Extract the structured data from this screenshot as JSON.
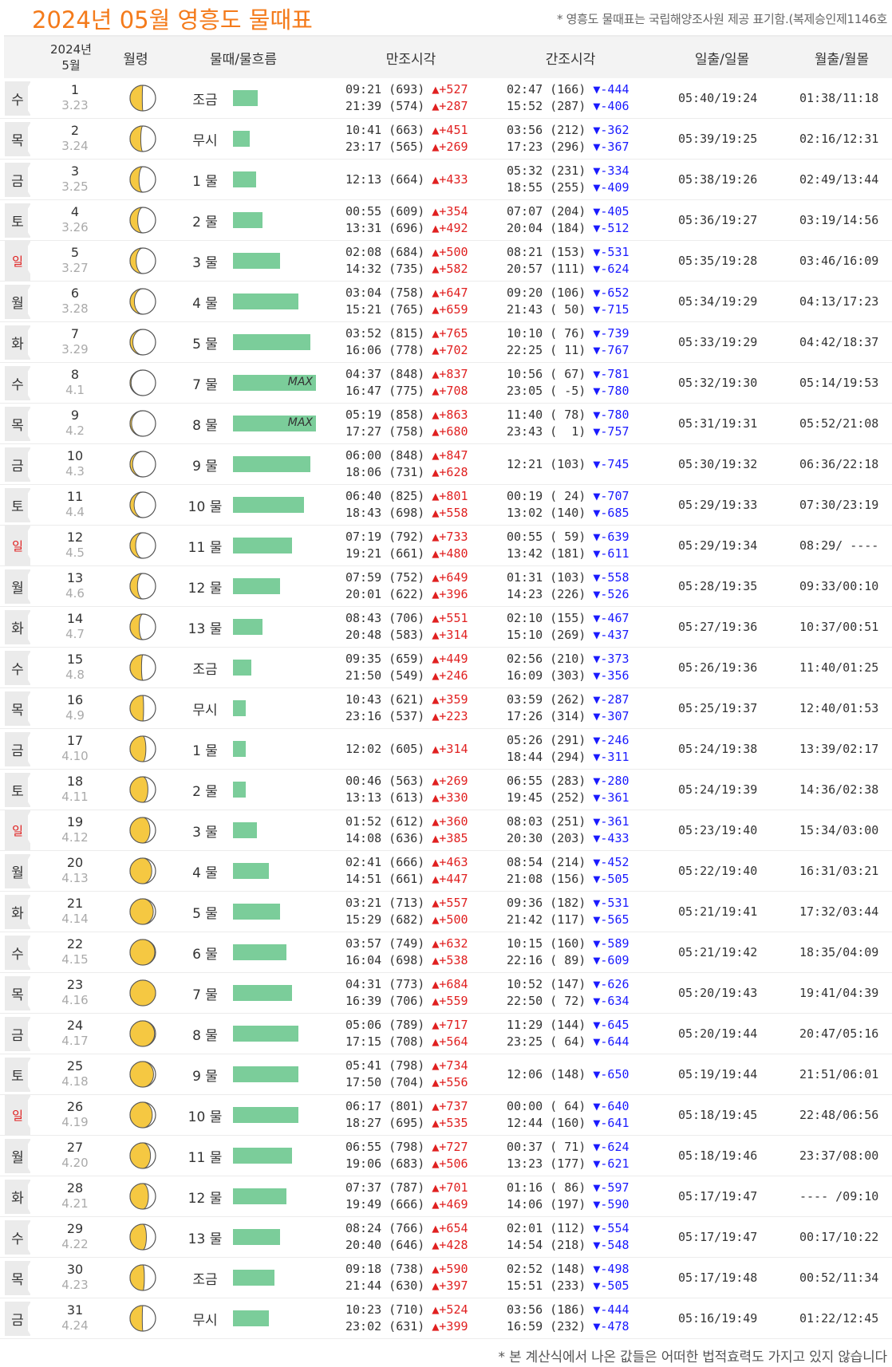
{
  "header": {
    "title": "2024년 05월 영흥도 물때표",
    "notice": "* 영흥도 물때표는 국립해양조사원 제공 표기함.(복제승인제1146호"
  },
  "columns": {
    "date_year": "2024년",
    "date_month": "5월",
    "moon_age": "월령",
    "tide_name": "물때/물흐름",
    "high": "만조시각",
    "low": "간조시각",
    "sun": "일출/일몰",
    "moon": "월출/월몰"
  },
  "colors": {
    "title": "#f47a1a",
    "bar": "#7bcd9a",
    "rise": "#e02020",
    "fall": "#1a1aff",
    "sunday": "#e02020"
  },
  "bar_max_label": "MAX",
  "rows": [
    {
      "dow": "수",
      "sun_day": false,
      "day": "1",
      "lunar": "3.23",
      "phase": 0.48,
      "tide": "조금",
      "flow": 0.3,
      "max": false,
      "high": [
        [
          "09:21 (693)",
          "▲+527"
        ],
        [
          "21:39 (574)",
          "▲+287"
        ]
      ],
      "low": [
        [
          "02:47 (166)",
          "▼-444"
        ],
        [
          "15:52 (287)",
          "▼-406"
        ]
      ],
      "sun": "05:40/19:24",
      "moon": "01:38/11:18"
    },
    {
      "dow": "목",
      "sun_day": false,
      "day": "2",
      "lunar": "3.24",
      "phase": 0.42,
      "tide": "무시",
      "flow": 0.2,
      "max": false,
      "high": [
        [
          "10:41 (663)",
          "▲+451"
        ],
        [
          "23:17 (565)",
          "▲+269"
        ]
      ],
      "low": [
        [
          "03:56 (212)",
          "▼-362"
        ],
        [
          "17:23 (296)",
          "▼-367"
        ]
      ],
      "sun": "05:39/19:25",
      "moon": "02:16/12:31"
    },
    {
      "dow": "금",
      "sun_day": false,
      "day": "3",
      "lunar": "3.25",
      "phase": 0.35,
      "tide": "1 물",
      "flow": 0.28,
      "max": false,
      "high": [
        [
          "12:13 (664)",
          "▲+433"
        ]
      ],
      "low": [
        [
          "05:32 (231)",
          "▼-334"
        ],
        [
          "18:55 (255)",
          "▼-409"
        ]
      ],
      "sun": "05:38/19:26",
      "moon": "02:49/13:44"
    },
    {
      "dow": "토",
      "sun_day": false,
      "day": "4",
      "lunar": "3.26",
      "phase": 0.3,
      "tide": "2 물",
      "flow": 0.36,
      "max": false,
      "high": [
        [
          "00:55 (609)",
          "▲+354"
        ],
        [
          "13:31 (696)",
          "▲+492"
        ]
      ],
      "low": [
        [
          "07:07 (204)",
          "▼-405"
        ],
        [
          "20:04 (184)",
          "▼-512"
        ]
      ],
      "sun": "05:36/19:27",
      "moon": "03:19/14:56"
    },
    {
      "dow": "일",
      "sun_day": true,
      "day": "5",
      "lunar": "3.27",
      "phase": 0.24,
      "tide": "3 물",
      "flow": 0.57,
      "max": false,
      "high": [
        [
          "02:08 (684)",
          "▲+500"
        ],
        [
          "14:32 (735)",
          "▲+582"
        ]
      ],
      "low": [
        [
          "08:21 (153)",
          "▼-531"
        ],
        [
          "20:57 (111)",
          "▼-624"
        ]
      ],
      "sun": "05:35/19:28",
      "moon": "03:46/16:09"
    },
    {
      "dow": "월",
      "sun_day": false,
      "day": "6",
      "lunar": "3.28",
      "phase": 0.17,
      "tide": "4 물",
      "flow": 0.79,
      "max": false,
      "high": [
        [
          "03:04 (758)",
          "▲+647"
        ],
        [
          "15:21 (765)",
          "▲+659"
        ]
      ],
      "low": [
        [
          "09:20 (106)",
          "▼-652"
        ],
        [
          "21:43 ( 50)",
          "▼-715"
        ]
      ],
      "sun": "05:34/19:29",
      "moon": "04:13/17:23"
    },
    {
      "dow": "화",
      "sun_day": false,
      "day": "7",
      "lunar": "3.29",
      "phase": 0.11,
      "tide": "5 물",
      "flow": 0.93,
      "max": false,
      "high": [
        [
          "03:52 (815)",
          "▲+765"
        ],
        [
          "16:06 (778)",
          "▲+702"
        ]
      ],
      "low": [
        [
          "10:10 ( 76)",
          "▼-739"
        ],
        [
          "22:25 ( 11)",
          "▼-767"
        ]
      ],
      "sun": "05:33/19:29",
      "moon": "04:42/18:37"
    },
    {
      "dow": "수",
      "sun_day": false,
      "day": "8",
      "lunar": "4.1",
      "phase": 0.04,
      "tide": "7 물",
      "flow": 1.0,
      "max": true,
      "high": [
        [
          "04:37 (848)",
          "▲+837"
        ],
        [
          "16:47 (775)",
          "▲+708"
        ]
      ],
      "low": [
        [
          "10:56 ( 67)",
          "▼-781"
        ],
        [
          "23:05 ( -5)",
          "▼-780"
        ]
      ],
      "sun": "05:32/19:30",
      "moon": "05:14/19:53"
    },
    {
      "dow": "목",
      "sun_day": false,
      "day": "9",
      "lunar": "4.2",
      "phase": 0.06,
      "tide": "8 물",
      "flow": 1.0,
      "max": true,
      "high": [
        [
          "05:19 (858)",
          "▲+863"
        ],
        [
          "17:27 (758)",
          "▲+680"
        ]
      ],
      "low": [
        [
          "11:40 ( 78)",
          "▼-780"
        ],
        [
          "23:43 (  1)",
          "▼-757"
        ]
      ],
      "sun": "05:31/19:31",
      "moon": "05:52/21:08"
    },
    {
      "dow": "금",
      "sun_day": false,
      "day": "10",
      "lunar": "4.3",
      "phase": 0.1,
      "tide": "9 물",
      "flow": 0.93,
      "max": false,
      "high": [
        [
          "06:00 (848)",
          "▲+847"
        ],
        [
          "18:06 (731)",
          "▲+628"
        ]
      ],
      "low": [
        [
          "12:21 (103)",
          "▼-745"
        ]
      ],
      "sun": "05:30/19:32",
      "moon": "06:36/22:18"
    },
    {
      "dow": "토",
      "sun_day": false,
      "day": "11",
      "lunar": "4.4",
      "phase": 0.16,
      "tide": "10 물",
      "flow": 0.86,
      "max": false,
      "high": [
        [
          "06:40 (825)",
          "▲+801"
        ],
        [
          "18:43 (698)",
          "▲+558"
        ]
      ],
      "low": [
        [
          "00:19 ( 24)",
          "▼-707"
        ],
        [
          "13:02 (140)",
          "▼-685"
        ]
      ],
      "sun": "05:29/19:33",
      "moon": "07:30/23:19"
    },
    {
      "dow": "일",
      "sun_day": true,
      "day": "12",
      "lunar": "4.5",
      "phase": 0.22,
      "tide": "11 물",
      "flow": 0.71,
      "max": false,
      "high": [
        [
          "07:19 (792)",
          "▲+733"
        ],
        [
          "19:21 (661)",
          "▲+480"
        ]
      ],
      "low": [
        [
          "00:55 ( 59)",
          "▼-639"
        ],
        [
          "13:42 (181)",
          "▼-611"
        ]
      ],
      "sun": "05:29/19:34",
      "moon": "08:29/ ----"
    },
    {
      "dow": "월",
      "sun_day": false,
      "day": "13",
      "lunar": "4.6",
      "phase": 0.29,
      "tide": "12 물",
      "flow": 0.57,
      "max": false,
      "high": [
        [
          "07:59 (752)",
          "▲+649"
        ],
        [
          "20:01 (622)",
          "▲+396"
        ]
      ],
      "low": [
        [
          "01:31 (103)",
          "▼-558"
        ],
        [
          "14:23 (226)",
          "▼-526"
        ]
      ],
      "sun": "05:28/19:35",
      "moon": "09:33/00:10"
    },
    {
      "dow": "화",
      "sun_day": false,
      "day": "14",
      "lunar": "4.7",
      "phase": 0.36,
      "tide": "13 물",
      "flow": 0.36,
      "max": false,
      "high": [
        [
          "08:43 (706)",
          "▲+551"
        ],
        [
          "20:48 (583)",
          "▲+314"
        ]
      ],
      "low": [
        [
          "02:10 (155)",
          "▼-467"
        ],
        [
          "15:10 (269)",
          "▼-437"
        ]
      ],
      "sun": "05:27/19:36",
      "moon": "10:37/00:51"
    },
    {
      "dow": "수",
      "sun_day": false,
      "day": "15",
      "lunar": "4.8",
      "phase": 0.45,
      "tide": "조금",
      "flow": 0.22,
      "max": false,
      "high": [
        [
          "09:35 (659)",
          "▲+449"
        ],
        [
          "21:50 (549)",
          "▲+246"
        ]
      ],
      "low": [
        [
          "02:56 (210)",
          "▼-373"
        ],
        [
          "16:09 (303)",
          "▼-356"
        ]
      ],
      "sun": "05:26/19:36",
      "moon": "11:40/01:25"
    },
    {
      "dow": "목",
      "sun_day": false,
      "day": "16",
      "lunar": "4.9",
      "phase": 0.53,
      "tide": "무시",
      "flow": 0.15,
      "max": false,
      "high": [
        [
          "10:43 (621)",
          "▲+359"
        ],
        [
          "23:16 (537)",
          "▲+223"
        ]
      ],
      "low": [
        [
          "03:59 (262)",
          "▼-287"
        ],
        [
          "17:26 (314)",
          "▼-307"
        ]
      ],
      "sun": "05:25/19:37",
      "moon": "12:40/01:53"
    },
    {
      "dow": "금",
      "sun_day": false,
      "day": "17",
      "lunar": "4.10",
      "phase": 0.62,
      "tide": "1 물",
      "flow": 0.15,
      "max": false,
      "high": [
        [
          "12:02 (605)",
          "▲+314"
        ]
      ],
      "low": [
        [
          "05:26 (291)",
          "▼-246"
        ],
        [
          "18:44 (294)",
          "▼-311"
        ]
      ],
      "sun": "05:24/19:38",
      "moon": "13:39/02:17"
    },
    {
      "dow": "토",
      "sun_day": false,
      "day": "18",
      "lunar": "4.11",
      "phase": 0.7,
      "tide": "2 물",
      "flow": 0.15,
      "max": false,
      "high": [
        [
          "00:46 (563)",
          "▲+269"
        ],
        [
          "13:13 (613)",
          "▲+330"
        ]
      ],
      "low": [
        [
          "06:55 (283)",
          "▼-280"
        ],
        [
          "19:45 (252)",
          "▼-361"
        ]
      ],
      "sun": "05:24/19:39",
      "moon": "14:36/02:38"
    },
    {
      "dow": "일",
      "sun_day": true,
      "day": "19",
      "lunar": "4.12",
      "phase": 0.78,
      "tide": "3 물",
      "flow": 0.29,
      "max": false,
      "high": [
        [
          "01:52 (612)",
          "▲+360"
        ],
        [
          "14:08 (636)",
          "▲+385"
        ]
      ],
      "low": [
        [
          "08:03 (251)",
          "▼-361"
        ],
        [
          "20:30 (203)",
          "▼-433"
        ]
      ],
      "sun": "05:23/19:40",
      "moon": "15:34/03:00"
    },
    {
      "dow": "월",
      "sun_day": false,
      "day": "20",
      "lunar": "4.13",
      "phase": 0.85,
      "tide": "4 물",
      "flow": 0.43,
      "max": false,
      "high": [
        [
          "02:41 (666)",
          "▲+463"
        ],
        [
          "14:51 (661)",
          "▲+447"
        ]
      ],
      "low": [
        [
          "08:54 (214)",
          "▼-452"
        ],
        [
          "21:08 (156)",
          "▼-505"
        ]
      ],
      "sun": "05:22/19:40",
      "moon": "16:31/03:21"
    },
    {
      "dow": "화",
      "sun_day": false,
      "day": "21",
      "lunar": "4.14",
      "phase": 0.91,
      "tide": "5 물",
      "flow": 0.57,
      "max": false,
      "high": [
        [
          "03:21 (713)",
          "▲+557"
        ],
        [
          "15:29 (682)",
          "▲+500"
        ]
      ],
      "low": [
        [
          "09:36 (182)",
          "▼-531"
        ],
        [
          "21:42 (117)",
          "▼-565"
        ]
      ],
      "sun": "05:21/19:41",
      "moon": "17:32/03:44"
    },
    {
      "dow": "수",
      "sun_day": false,
      "day": "22",
      "lunar": "4.15",
      "phase": 0.97,
      "tide": "6 물",
      "flow": 0.64,
      "max": false,
      "high": [
        [
          "03:57 (749)",
          "▲+632"
        ],
        [
          "16:04 (698)",
          "▲+538"
        ]
      ],
      "low": [
        [
          "10:15 (160)",
          "▼-589"
        ],
        [
          "22:16 ( 89)",
          "▼-609"
        ]
      ],
      "sun": "05:21/19:42",
      "moon": "18:35/04:09"
    },
    {
      "dow": "목",
      "sun_day": false,
      "day": "23",
      "lunar": "4.16",
      "phase": 1.0,
      "tide": "7 물",
      "flow": 0.71,
      "max": false,
      "high": [
        [
          "04:31 (773)",
          "▲+684"
        ],
        [
          "16:39 (706)",
          "▲+559"
        ]
      ],
      "low": [
        [
          "10:52 (147)",
          "▼-626"
        ],
        [
          "22:50 ( 72)",
          "▼-634"
        ]
      ],
      "sun": "05:20/19:43",
      "moon": "19:41/04:39"
    },
    {
      "dow": "금",
      "sun_day": false,
      "day": "24",
      "lunar": "4.17",
      "phase": 0.96,
      "tide": "8 물",
      "flow": 0.79,
      "max": false,
      "high": [
        [
          "05:06 (789)",
          "▲+717"
        ],
        [
          "17:15 (708)",
          "▲+564"
        ]
      ],
      "low": [
        [
          "11:29 (144)",
          "▼-645"
        ],
        [
          "23:25 ( 64)",
          "▼-644"
        ]
      ],
      "sun": "05:20/19:44",
      "moon": "20:47/05:16"
    },
    {
      "dow": "토",
      "sun_day": false,
      "day": "25",
      "lunar": "4.18",
      "phase": 0.92,
      "tide": "9 물",
      "flow": 0.79,
      "max": false,
      "high": [
        [
          "05:41 (798)",
          "▲+734"
        ],
        [
          "17:50 (704)",
          "▲+556"
        ]
      ],
      "low": [
        [
          "12:06 (148)",
          "▼-650"
        ]
      ],
      "sun": "05:19/19:44",
      "moon": "21:51/06:01"
    },
    {
      "dow": "일",
      "sun_day": true,
      "day": "26",
      "lunar": "4.19",
      "phase": 0.87,
      "tide": "10 물",
      "flow": 0.79,
      "max": false,
      "high": [
        [
          "06:17 (801)",
          "▲+737"
        ],
        [
          "18:27 (695)",
          "▲+535"
        ]
      ],
      "low": [
        [
          "00:00 ( 64)",
          "▼-640"
        ],
        [
          "12:44 (160)",
          "▼-641"
        ]
      ],
      "sun": "05:18/19:45",
      "moon": "22:48/06:56"
    },
    {
      "dow": "월",
      "sun_day": false,
      "day": "27",
      "lunar": "4.20",
      "phase": 0.8,
      "tide": "11 물",
      "flow": 0.71,
      "max": false,
      "high": [
        [
          "06:55 (798)",
          "▲+727"
        ],
        [
          "19:06 (683)",
          "▲+506"
        ]
      ],
      "low": [
        [
          "00:37 ( 71)",
          "▼-624"
        ],
        [
          "13:23 (177)",
          "▼-621"
        ]
      ],
      "sun": "05:18/19:46",
      "moon": "23:37/08:00"
    },
    {
      "dow": "화",
      "sun_day": false,
      "day": "28",
      "lunar": "4.21",
      "phase": 0.72,
      "tide": "12 물",
      "flow": 0.64,
      "max": false,
      "high": [
        [
          "07:37 (787)",
          "▲+701"
        ],
        [
          "19:49 (666)",
          "▲+469"
        ]
      ],
      "low": [
        [
          "01:16 ( 86)",
          "▼-597"
        ],
        [
          "14:06 (197)",
          "▼-590"
        ]
      ],
      "sun": "05:17/19:47",
      "moon": "---- /09:10"
    },
    {
      "dow": "수",
      "sun_day": false,
      "day": "29",
      "lunar": "4.22",
      "phase": 0.64,
      "tide": "13 물",
      "flow": 0.57,
      "max": false,
      "high": [
        [
          "08:24 (766)",
          "▲+654"
        ],
        [
          "20:40 (646)",
          "▲+428"
        ]
      ],
      "low": [
        [
          "02:01 (112)",
          "▼-554"
        ],
        [
          "14:54 (218)",
          "▼-548"
        ]
      ],
      "sun": "05:17/19:47",
      "moon": "00:17/10:22"
    },
    {
      "dow": "목",
      "sun_day": false,
      "day": "30",
      "lunar": "4.23",
      "phase": 0.56,
      "tide": "조금",
      "flow": 0.5,
      "max": false,
      "high": [
        [
          "09:18 (738)",
          "▲+590"
        ],
        [
          "21:44 (630)",
          "▲+397"
        ]
      ],
      "low": [
        [
          "02:52 (148)",
          "▼-498"
        ],
        [
          "15:51 (233)",
          "▼-505"
        ]
      ],
      "sun": "05:17/19:48",
      "moon": "00:52/11:34"
    },
    {
      "dow": "금",
      "sun_day": false,
      "day": "31",
      "lunar": "4.24",
      "phase": 0.48,
      "tide": "무시",
      "flow": 0.43,
      "max": false,
      "high": [
        [
          "10:23 (710)",
          "▲+524"
        ],
        [
          "23:02 (631)",
          "▲+399"
        ]
      ],
      "low": [
        [
          "03:56 (186)",
          "▼-444"
        ],
        [
          "16:59 (232)",
          "▼-478"
        ]
      ],
      "sun": "05:16/19:49",
      "moon": "01:22/12:45"
    }
  ],
  "footer": "* 본 계산식에서 나온 값들은 어떠한 법적효력도 가지고 있지 않습니다"
}
